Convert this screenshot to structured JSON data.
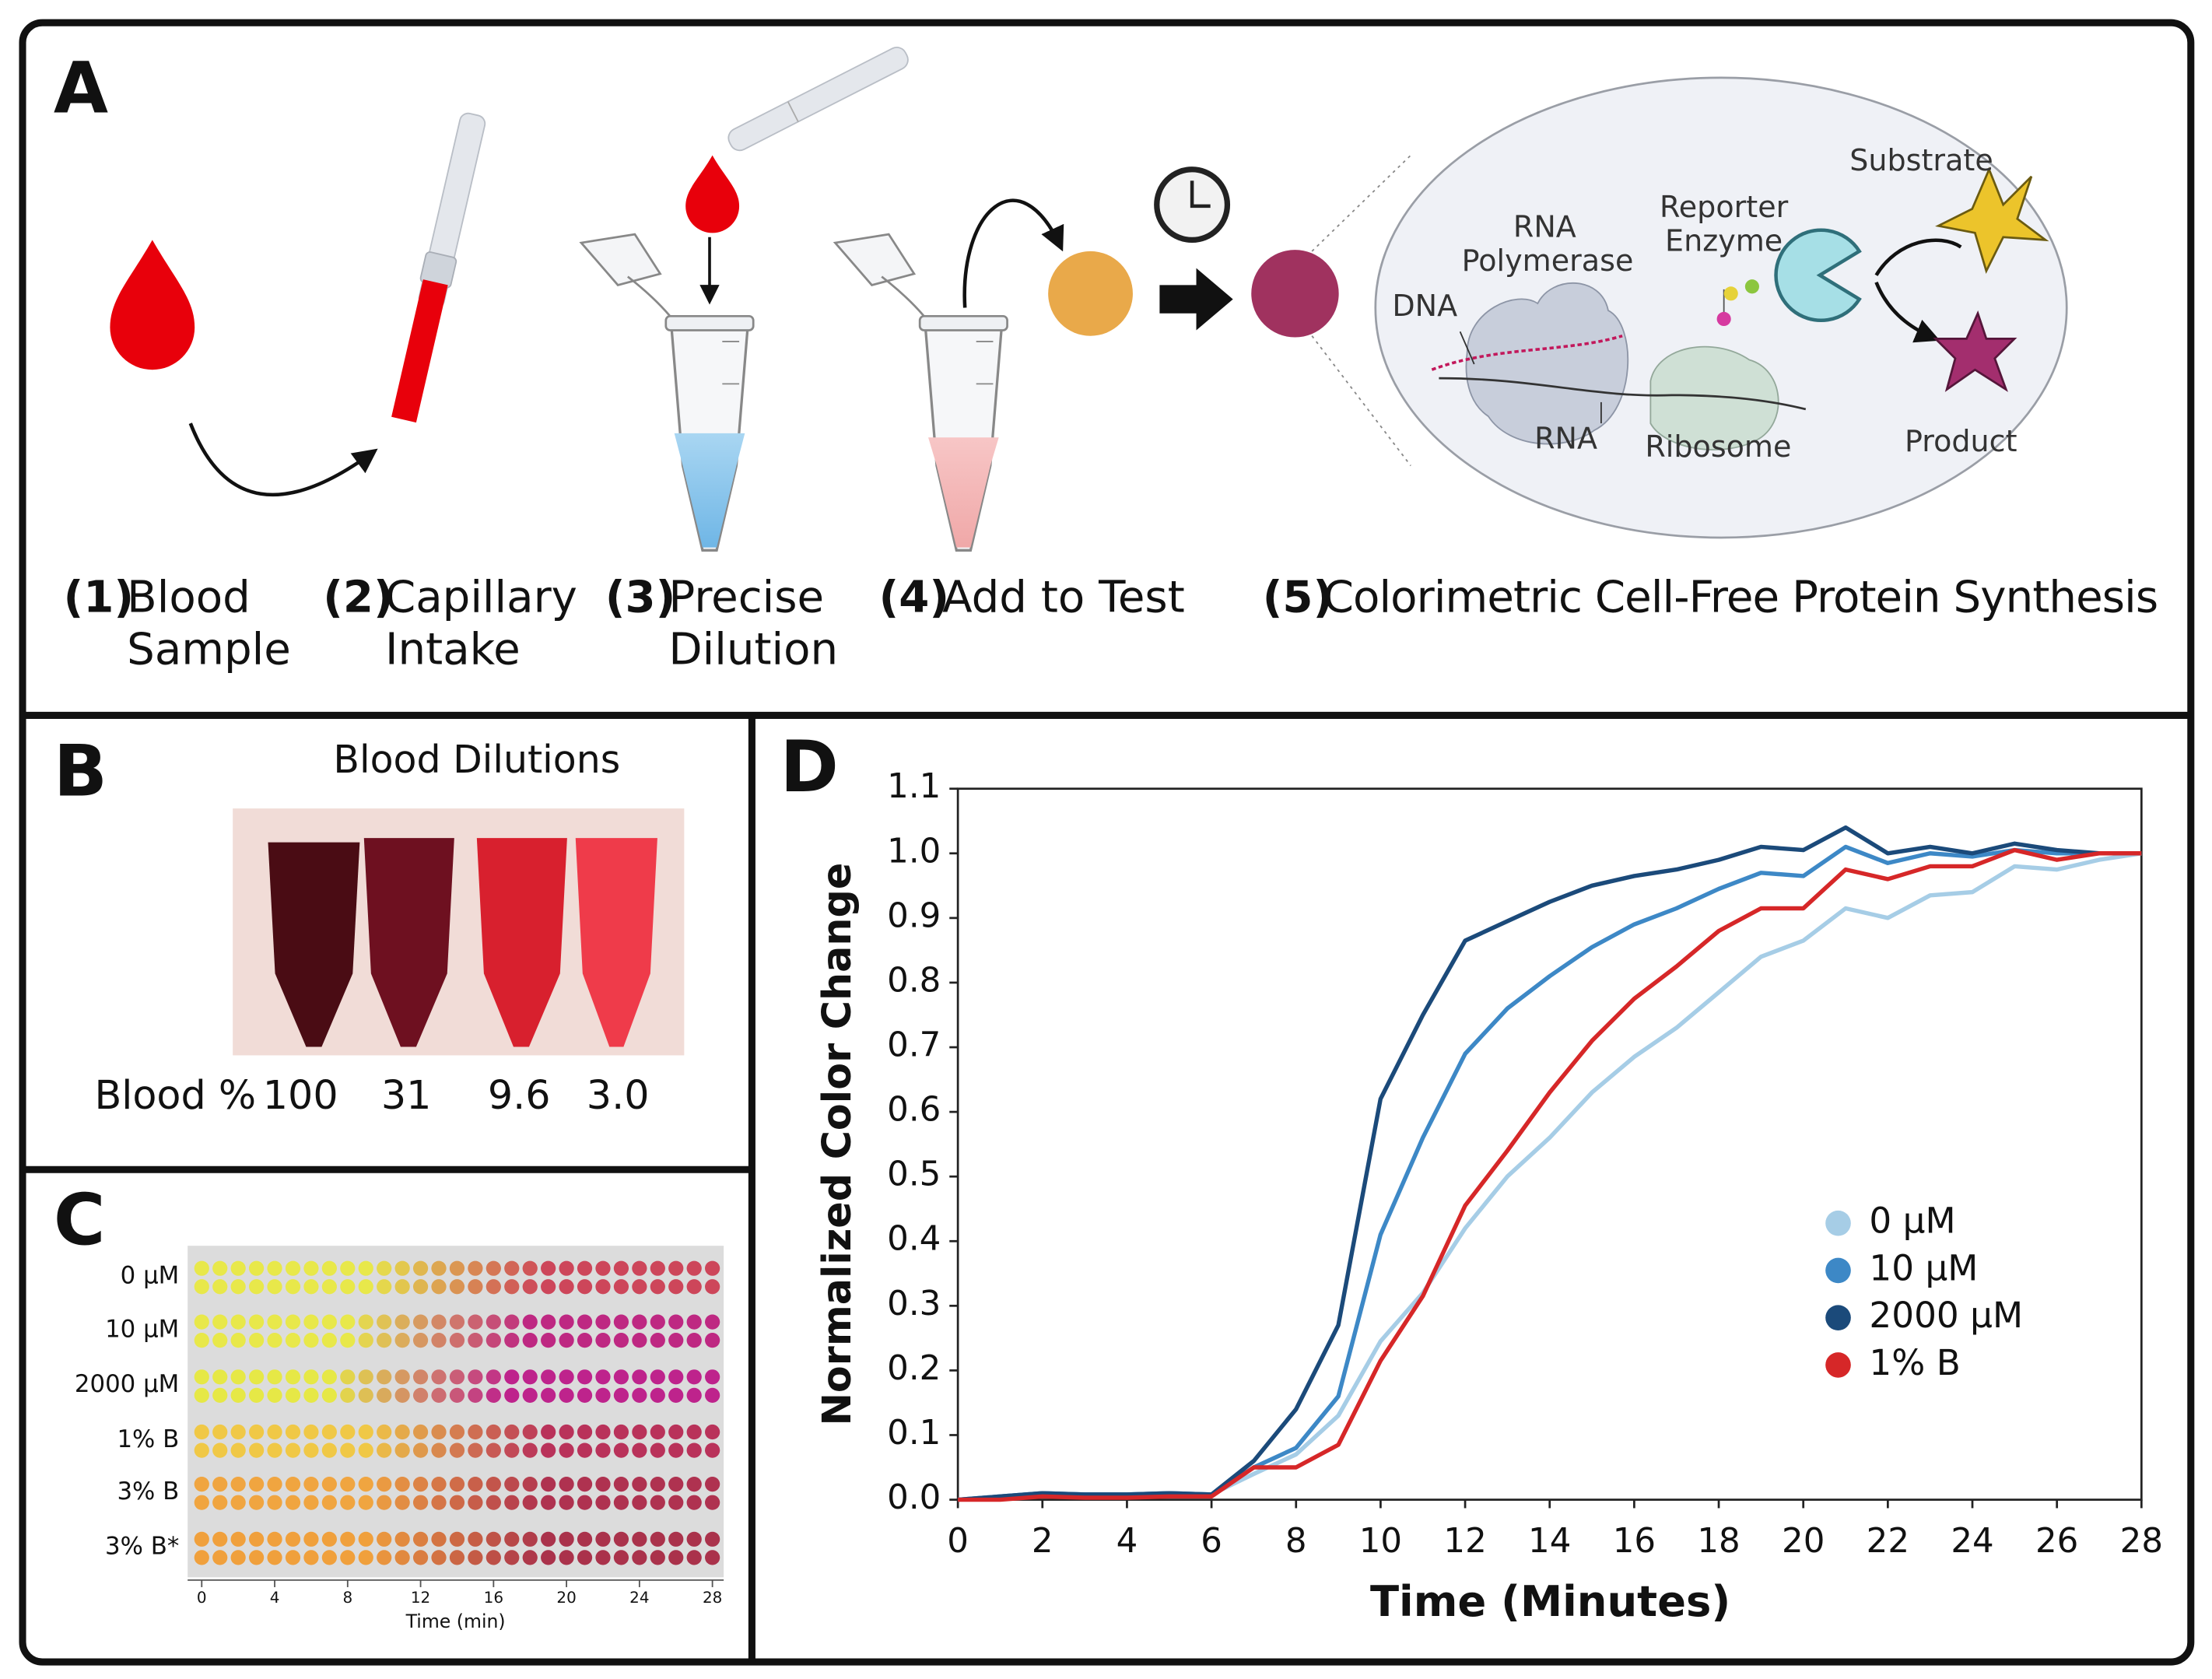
{
  "panels": {
    "a": {
      "letter": "A",
      "steps": [
        {
          "num": "(1)",
          "lines": [
            "Blood",
            "Sample"
          ]
        },
        {
          "num": "(2)",
          "lines": [
            "Capillary",
            "Intake"
          ]
        },
        {
          "num": "(3)",
          "lines": [
            "Precise",
            "Dilution"
          ]
        },
        {
          "num": "(4)",
          "lines": [
            "Add to Test"
          ]
        },
        {
          "num": "(5)",
          "lines": [
            "Colorimetric Cell-Free Protein Synthesis"
          ]
        }
      ],
      "diagram": {
        "polymerase": [
          "RNA",
          "Polymerase"
        ],
        "enzyme": [
          "Reporter",
          "Enzyme"
        ],
        "substrate": "Substrate",
        "dna": "DNA",
        "rna": "RNA",
        "ribosome": "Ribosome",
        "product": "Product"
      }
    },
    "b": {
      "letter": "B",
      "title": "Blood Dilutions",
      "row_label": "Blood %",
      "dilutions": [
        "100",
        "31",
        "9.6",
        "3.0"
      ]
    },
    "c": {
      "letter": "C",
      "rows": [
        "0 μM",
        "10 μM",
        "2000 μM",
        "1% B",
        "3% B",
        "3% B*"
      ],
      "xlabel": "Time (min)",
      "xlim": [
        0,
        28
      ],
      "xticks": [
        0,
        4,
        8,
        12,
        16,
        20,
        24,
        28
      ]
    },
    "d": {
      "letter": "D"
    }
  },
  "chart_data": {
    "type": "line",
    "xlabel": "Time (Minutes)",
    "ylabel": "Normalized Color Change",
    "x": [
      0,
      1,
      2,
      3,
      4,
      5,
      6,
      7,
      8,
      9,
      10,
      11,
      12,
      13,
      14,
      15,
      16,
      17,
      18,
      19,
      20,
      21,
      22,
      23,
      24,
      25,
      26,
      27,
      28
    ],
    "xlim": [
      0,
      28
    ],
    "xticks": [
      0,
      2,
      4,
      6,
      8,
      10,
      12,
      14,
      16,
      18,
      20,
      22,
      24,
      26,
      28
    ],
    "ylim": [
      0,
      1.1
    ],
    "yticks": [
      {
        "value": 0,
        "label": "0.0"
      },
      0.1,
      0.2,
      0.3,
      0.4,
      0.5,
      0.6,
      0.7,
      0.8,
      0.9,
      {
        "value": 1,
        "label": "1.0"
      },
      1.1
    ],
    "legend": "lower right",
    "series": [
      {
        "name": "0 μM",
        "color": "#a6cde6",
        "values": [
          0,
          0.005,
          0.01,
          0.008,
          0.008,
          0.01,
          0.008,
          0.04,
          0.07,
          0.13,
          0.245,
          0.32,
          0.42,
          0.5,
          0.56,
          0.63,
          0.685,
          0.73,
          0.785,
          0.84,
          0.865,
          0.915,
          0.9,
          0.935,
          0.94,
          0.98,
          0.975,
          0.99,
          1.0
        ]
      },
      {
        "name": "10 μM",
        "color": "#3d88c6",
        "values": [
          0,
          0.005,
          0.01,
          0.008,
          0.008,
          0.01,
          0.008,
          0.05,
          0.08,
          0.16,
          0.41,
          0.56,
          0.69,
          0.76,
          0.81,
          0.855,
          0.89,
          0.915,
          0.945,
          0.97,
          0.965,
          1.01,
          0.985,
          1.0,
          0.995,
          1.005,
          1.0,
          1.0,
          1.0
        ]
      },
      {
        "name": "2000 μM",
        "color": "#1b4a7a",
        "values": [
          0,
          0.005,
          0.01,
          0.008,
          0.008,
          0.01,
          0.008,
          0.06,
          0.14,
          0.27,
          0.62,
          0.75,
          0.865,
          0.895,
          0.925,
          0.95,
          0.965,
          0.975,
          0.99,
          1.01,
          1.005,
          1.04,
          1.0,
          1.01,
          1.0,
          1.015,
          1.005,
          1.0,
          1.0
        ]
      },
      {
        "name": "1% B",
        "color": "#d62728",
        "values": [
          0,
          0,
          0.005,
          0.003,
          0.003,
          0.005,
          0.005,
          0.05,
          0.05,
          0.085,
          0.215,
          0.315,
          0.455,
          0.54,
          0.63,
          0.71,
          0.775,
          0.825,
          0.88,
          0.915,
          0.915,
          0.975,
          0.96,
          0.98,
          0.98,
          1.005,
          0.99,
          1.0,
          1.0
        ]
      }
    ]
  }
}
